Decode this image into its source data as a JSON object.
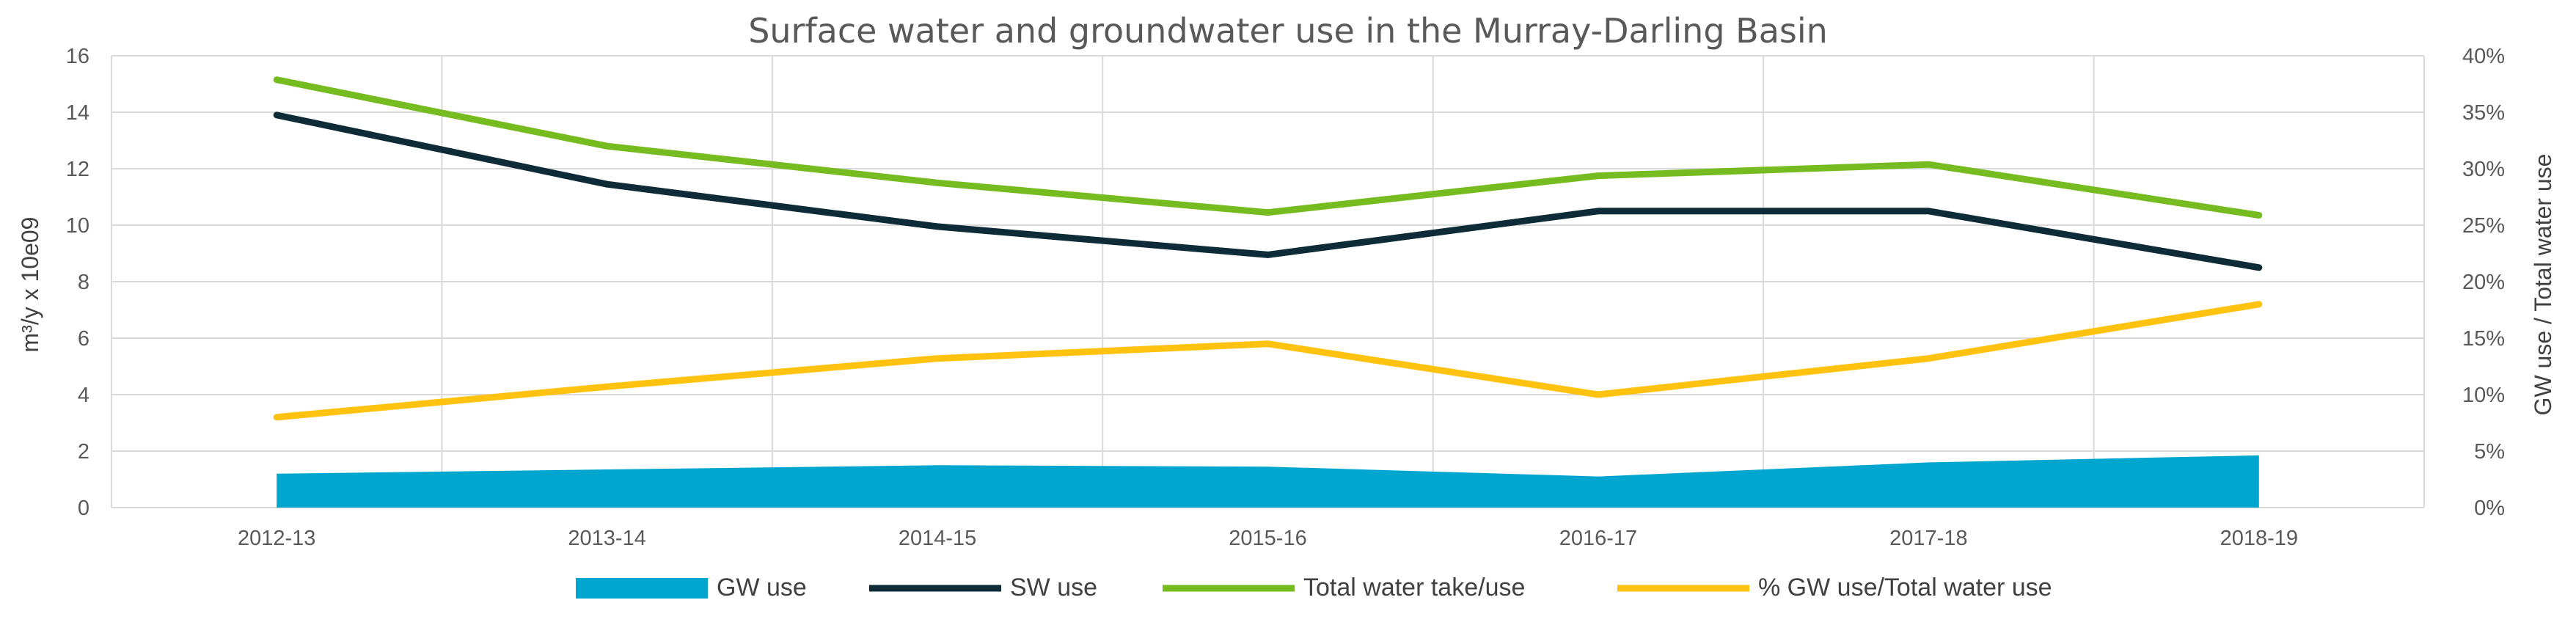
{
  "chart_data": {
    "type": "line",
    "title": "Surface water and  groundwater use in the Murray-Darling Basin",
    "categories": [
      "2012-13",
      "2013-14",
      "2014-15",
      "2015-16",
      "2016-17",
      "2017-18",
      "2018-19"
    ],
    "ylabel": "m³/y x 10e09",
    "y2label": "GW use / Total water use",
    "ylim": [
      0,
      16
    ],
    "y2lim": [
      0,
      0.4
    ],
    "yticks": [
      "0",
      "2",
      "4",
      "6",
      "8",
      "10",
      "12",
      "14",
      "16"
    ],
    "y2ticks": [
      "0%",
      "5%",
      "10%",
      "15%",
      "20%",
      "25%",
      "30%",
      "35%",
      "40%"
    ],
    "grid": true,
    "legend_position": "bottom",
    "series": [
      {
        "name": "GW use",
        "kind": "area",
        "axis": "left",
        "color": "#00A6CE",
        "values": [
          1.2,
          1.35,
          1.5,
          1.45,
          1.1,
          1.6,
          1.85
        ]
      },
      {
        "name": "SW use",
        "kind": "line",
        "axis": "left",
        "color": "#0E2B38",
        "values": [
          13.9,
          11.45,
          9.95,
          8.95,
          10.5,
          10.5,
          8.5
        ]
      },
      {
        "name": "Total water take/use",
        "kind": "line",
        "axis": "left",
        "color": "#76BC21",
        "values": [
          15.15,
          12.8,
          11.5,
          10.45,
          11.75,
          12.15,
          10.35
        ]
      },
      {
        "name": "% GW use/Total water use",
        "kind": "line",
        "axis": "right",
        "color": "#FFC20E",
        "values": [
          0.08,
          0.107,
          0.132,
          0.145,
          0.1,
          0.132,
          0.18
        ]
      }
    ]
  }
}
